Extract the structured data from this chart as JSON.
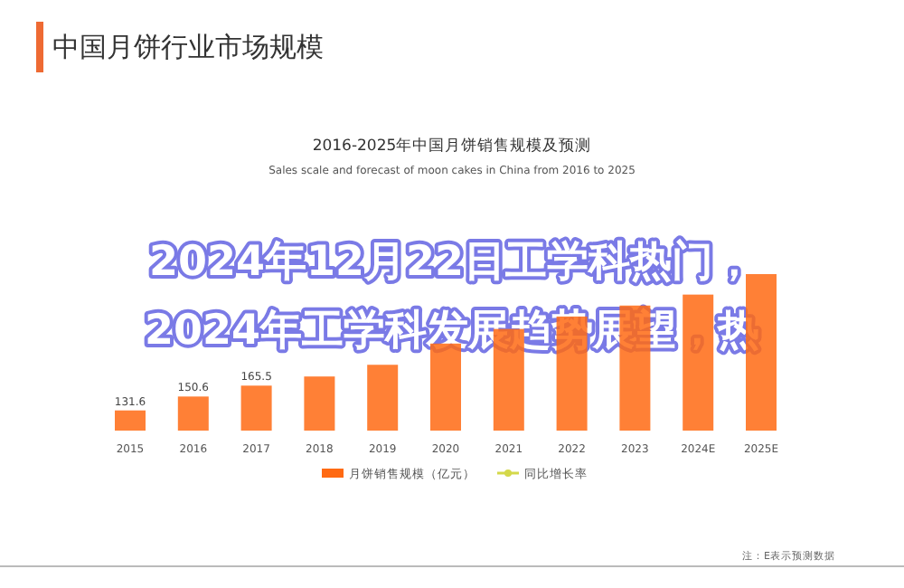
{
  "chart_data": {
    "type": "bar",
    "title": "2016-2025年中国月饼销售规模及预测",
    "subtitle": "Sales scale and forecast of moon cakes in China from 2016 to 2025",
    "categories": [
      "2015",
      "2016",
      "2017",
      "2018",
      "2019",
      "2020",
      "2021",
      "2022",
      "2023",
      "2024E",
      "2025E"
    ],
    "ylim": [
      104,
      320
    ],
    "legend": "bottom",
    "series": [
      {
        "name": "月饼销售规模（亿元）",
        "color": "#ff6a13",
        "values": [
          131.6,
          150.6,
          165.5,
          178,
          194,
          223,
          243,
          260,
          275,
          290,
          318
        ],
        "value_labels": [
          "131.6",
          "150.6",
          "165.5",
          null,
          null,
          null,
          null,
          null,
          null,
          null,
          null
        ]
      },
      {
        "name": "同比增长率",
        "type": "line",
        "color": "#d4d84a",
        "marker": "circle",
        "values": [
          null,
          null,
          null,
          null,
          null,
          null,
          null,
          null,
          null,
          null,
          null
        ]
      }
    ],
    "annotations": [
      "中国月饼行业市场规模",
      "注：E表示预测数据",
      "2024年12月22日工学科热门，",
      "2024年工学科发展趋势展望，热"
    ]
  }
}
